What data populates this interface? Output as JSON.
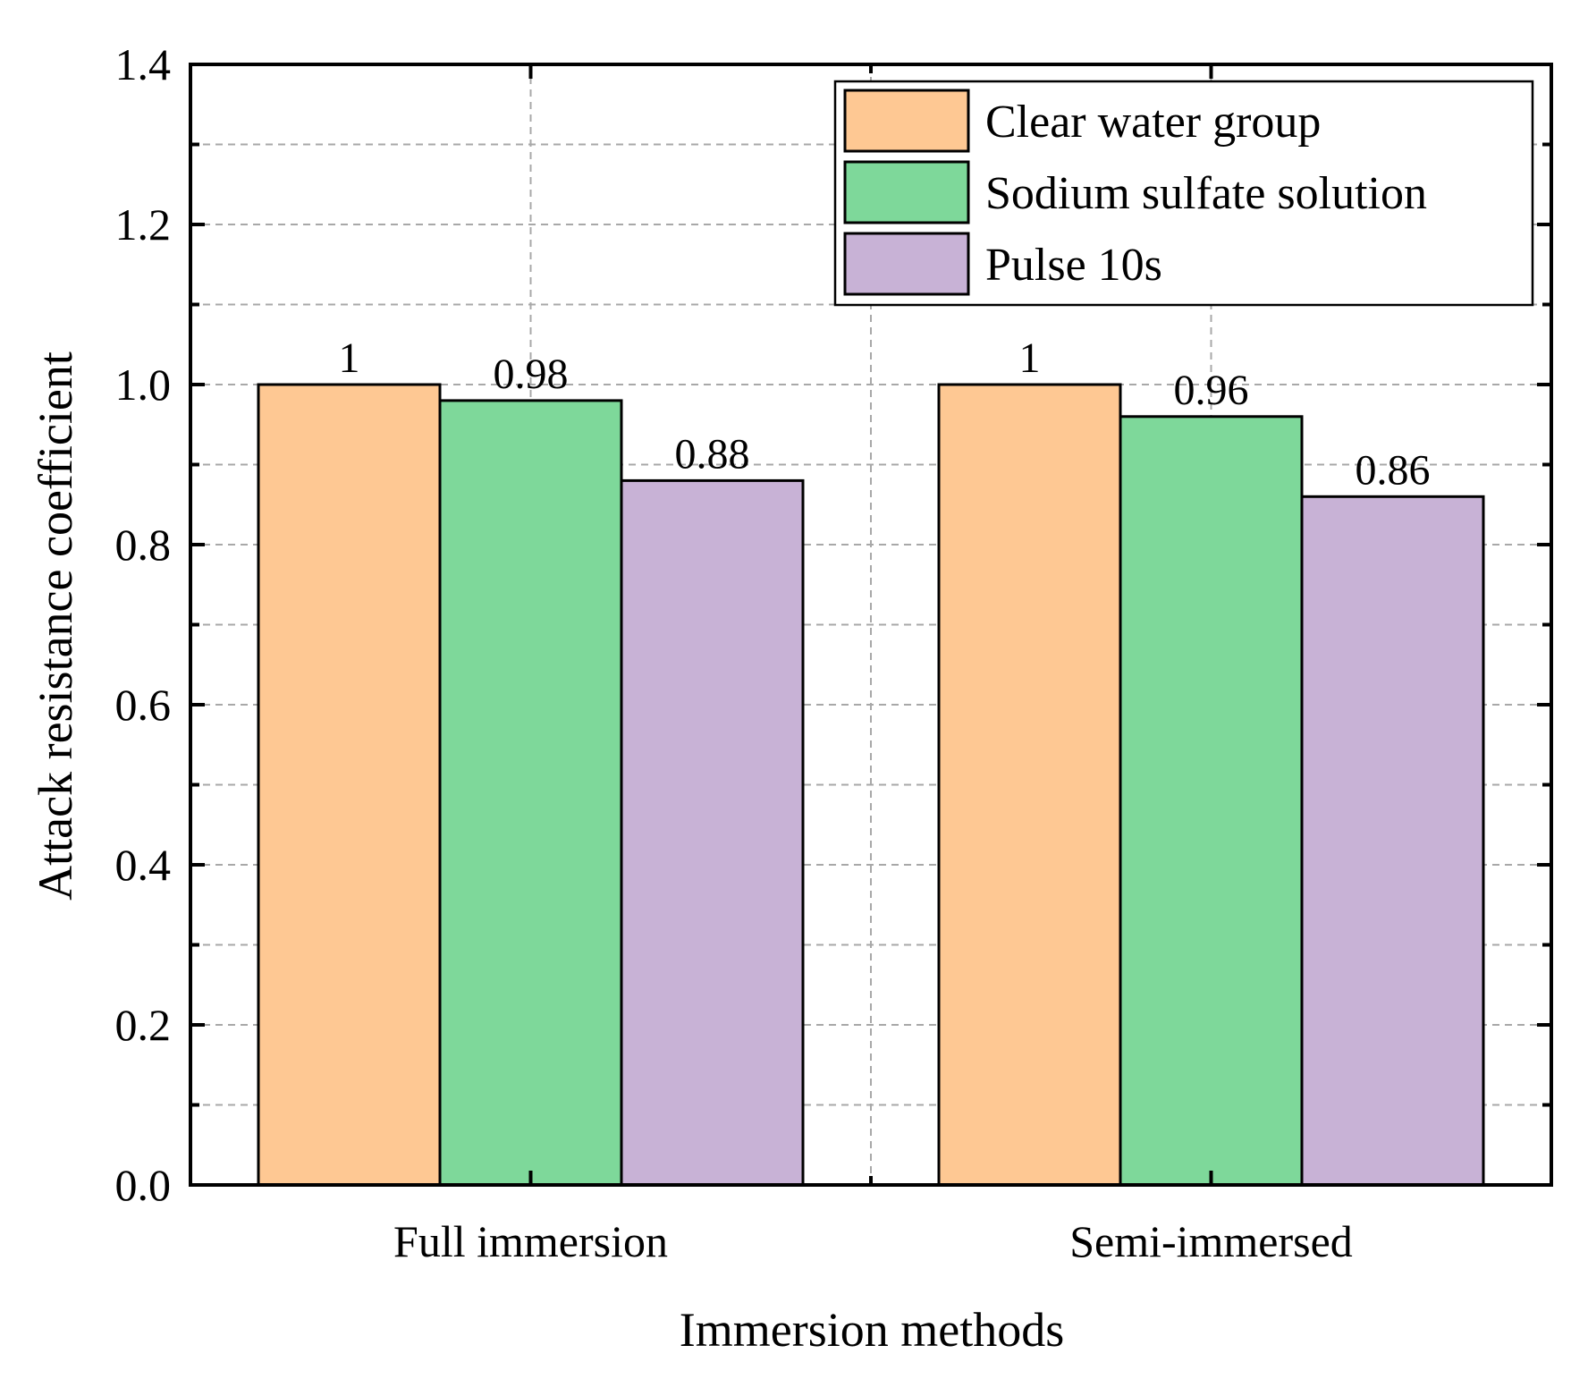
{
  "chart_data": {
    "type": "bar",
    "title": "",
    "xlabel": "Immersion methods",
    "ylabel": "Attack resistance coefficient",
    "ylim": [
      0,
      1.4
    ],
    "yticks": [
      "0.0",
      "0.2",
      "0.4",
      "0.6",
      "0.8",
      "1.0",
      "1.2",
      "1.4"
    ],
    "grid": true,
    "legend_position": "top-right",
    "categories": [
      "Full immersion",
      "Semi-immersed"
    ],
    "series": [
      {
        "name": "Clear water group",
        "color": "#fec893",
        "values": [
          1,
          1
        ],
        "labels": [
          "1",
          "1"
        ]
      },
      {
        "name": "Sodium sulfate solution",
        "color": "#7ed89a",
        "values": [
          0.98,
          0.96
        ],
        "labels": [
          "0.98",
          "0.96"
        ]
      },
      {
        "name": "Pulse 10s",
        "color": "#c8b2d6",
        "values": [
          0.88,
          0.86
        ],
        "labels": [
          "0.88",
          "0.86"
        ]
      }
    ]
  }
}
